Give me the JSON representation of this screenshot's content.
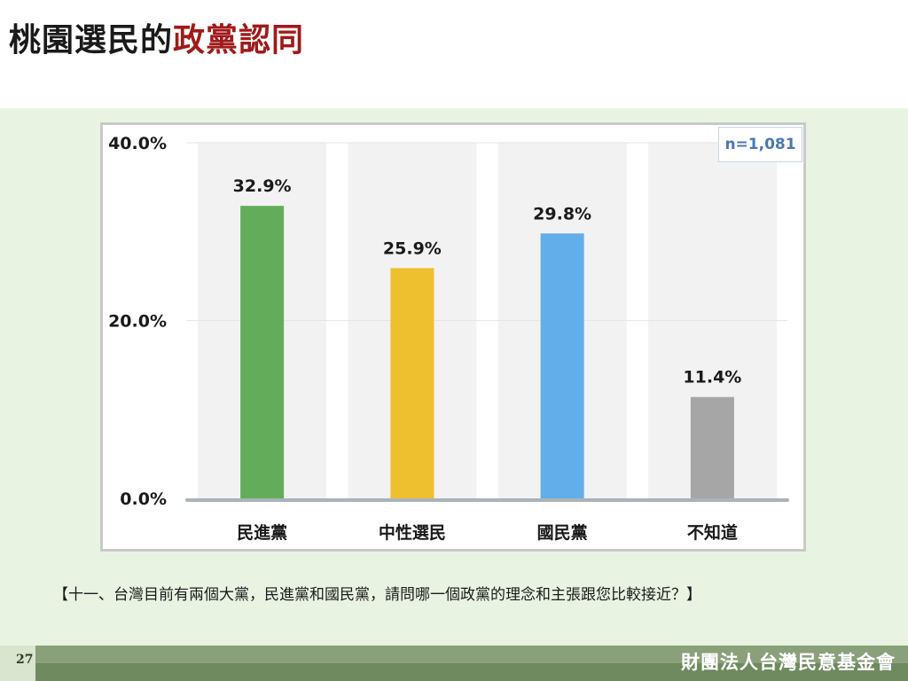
{
  "title": {
    "part1": "桃園選民的",
    "part2": "政黨認同"
  },
  "sample_size": "n=1,081",
  "question": "【十一、台灣目前有兩個大黨，民進黨和國民黨，請問哪一個政黨的理念和主張跟您比較接近？】",
  "page_number": "27",
  "organization": "財團法人台灣民意基金會",
  "chart_data": {
    "type": "bar",
    "categories": [
      "民進黨",
      "中性選民",
      "國民黨",
      "不知道"
    ],
    "values": [
      32.9,
      25.9,
      29.8,
      11.4
    ],
    "value_labels": [
      "32.9%",
      "25.9%",
      "29.8%",
      "11.4%"
    ],
    "colors": [
      "#63ad5a",
      "#eebf2f",
      "#62aeea",
      "#a6a6a6"
    ],
    "ylim": [
      0,
      40
    ],
    "yticks": [
      0,
      20,
      40
    ],
    "ytick_labels": [
      "0.0%",
      "20.0%",
      "40.0%"
    ],
    "title": "",
    "xlabel": "",
    "ylabel": "",
    "grid": true,
    "category_background": "#f2f2f2"
  }
}
